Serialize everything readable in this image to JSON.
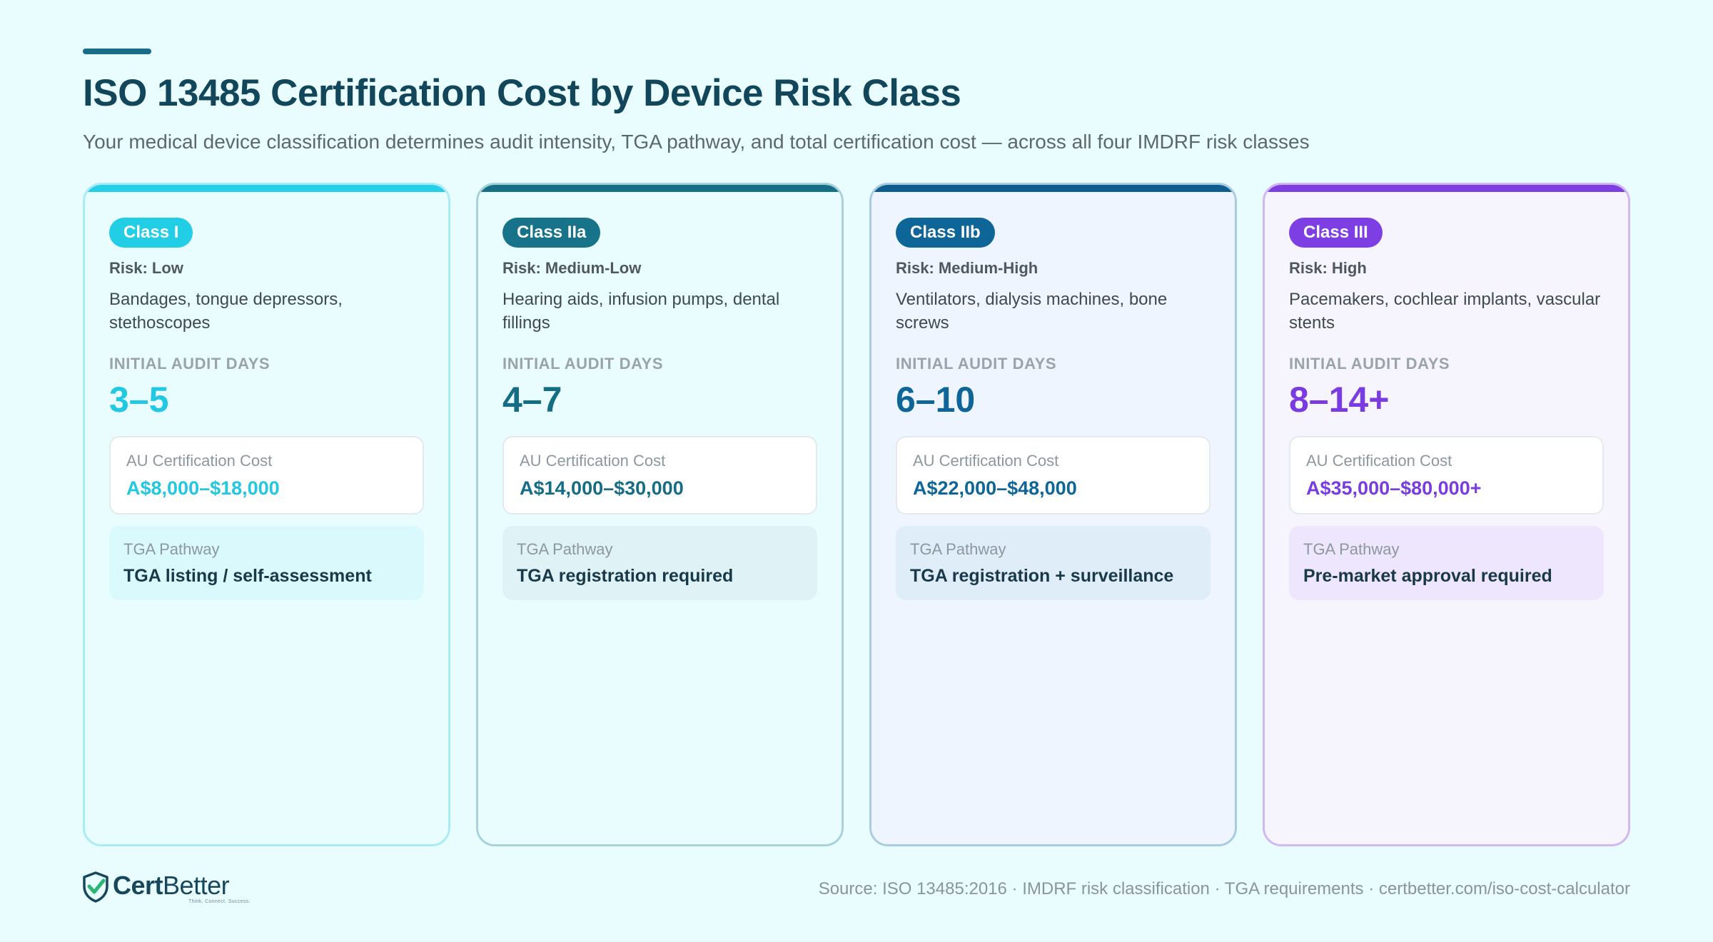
{
  "header": {
    "title": "ISO 13485 Certification Cost by Device Risk Class",
    "subtitle": "Your medical device classification determines audit intensity, TGA pathway, and total certification cost — across all four IMDRF risk classes"
  },
  "labels": {
    "audit_days": "INITIAL AUDIT DAYS",
    "cost": "AU Certification Cost",
    "pathway": "TGA Pathway"
  },
  "cards": [
    {
      "class": "Class I",
      "risk": "Risk: Low",
      "examples": "Bandages, tongue depressors, stethoscopes",
      "audit_days": "3–5",
      "cost": "A$8,000–$18,000",
      "pathway": "TGA listing / self-assessment",
      "accent": "#22cde6"
    },
    {
      "class": "Class IIa",
      "risk": "Risk: Medium-Low",
      "examples": "Hearing aids, infusion pumps, dental fillings",
      "audit_days": "4–7",
      "cost": "A$14,000–$30,000",
      "pathway": "TGA registration required",
      "accent": "#17738a"
    },
    {
      "class": "Class IIb",
      "risk": "Risk: Medium-High",
      "examples": "Ventilators, dialysis machines, bone screws",
      "audit_days": "6–10",
      "cost": "A$22,000–$48,000",
      "pathway": "TGA registration + surveillance",
      "accent": "#0e6597"
    },
    {
      "class": "Class III",
      "risk": "Risk: High",
      "examples": "Pacemakers, cochlear implants, vascular stents",
      "audit_days": "8–14+",
      "cost": "A$35,000–$80,000+",
      "pathway": "Pre-market approval required",
      "accent": "#7d3fe3"
    }
  ],
  "footer": {
    "logo_bold": "Cert",
    "logo_light": "Better",
    "logo_tagline": "Think. Connect. Success.",
    "source": "Source: ISO 13485:2016 · IMDRF risk classification · TGA requirements · certbetter.com/iso-cost-calculator"
  }
}
